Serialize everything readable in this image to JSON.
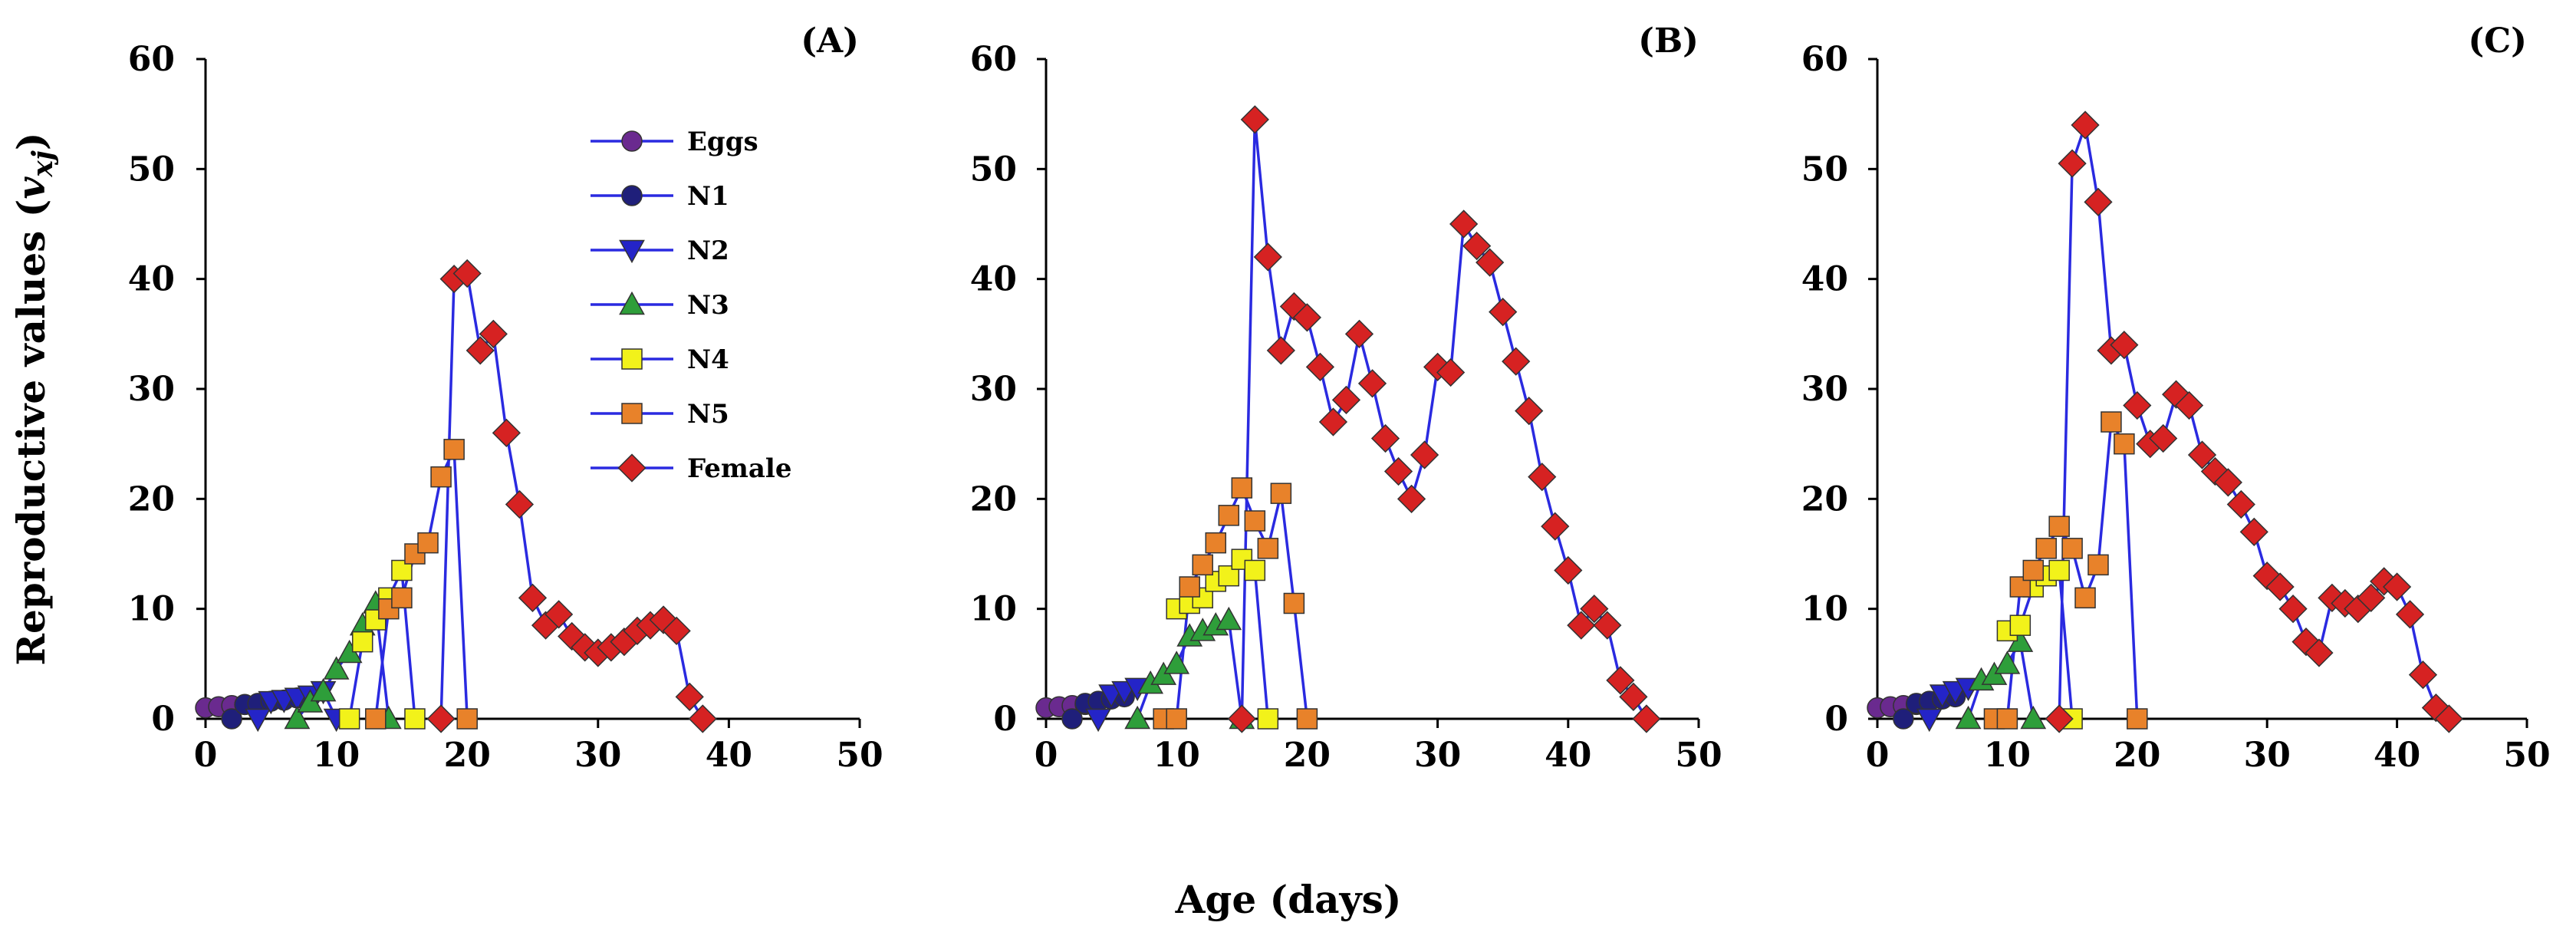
{
  "chart_data": {
    "type": "line",
    "xlabel": "Age (days)",
    "ylabel_main": "Reproductive values (",
    "ylabel_var": "v",
    "ylabel_sub": "xj",
    "ylabel_close": ")",
    "xlim": [
      0,
      50
    ],
    "ylim": [
      0,
      60
    ],
    "x_ticks": [
      "0",
      "10",
      "20",
      "30",
      "40",
      "50"
    ],
    "y_ticks": [
      "0",
      "10",
      "20",
      "30",
      "40",
      "50",
      "60"
    ],
    "legend": {
      "position": "inside-top-left of panel A",
      "entries": [
        "Eggs",
        "N1",
        "N2",
        "N3",
        "N4",
        "N5",
        "Female"
      ]
    },
    "stage_styles": {
      "Eggs": {
        "marker": "circle",
        "color": "#6a2a8f"
      },
      "N1": {
        "marker": "circle",
        "color": "#1f1f7a"
      },
      "N2": {
        "marker": "triangle-down",
        "color": "#2424c8"
      },
      "N3": {
        "marker": "triangle-up",
        "color": "#2e9e3a"
      },
      "N4": {
        "marker": "square",
        "color": "#f2f21a"
      },
      "N5": {
        "marker": "square",
        "color": "#e8822a"
      },
      "Female": {
        "marker": "diamond",
        "color": "#d62222"
      }
    },
    "line_color": "#2a2ae0",
    "panels": [
      {
        "label": "(A)",
        "series": [
          {
            "name": "Eggs",
            "x": [
              0,
              1,
              2,
              3
            ],
            "y": [
              1.0,
              1.1,
              1.2,
              1.3
            ]
          },
          {
            "name": "N1",
            "x": [
              2,
              3,
              4,
              5,
              6,
              7,
              8
            ],
            "y": [
              0,
              1.3,
              1.4,
              1.6,
              1.7,
              1.9,
              2.0
            ]
          },
          {
            "name": "N2",
            "x": [
              4,
              5,
              6,
              7,
              8,
              9,
              10
            ],
            "y": [
              0,
              1.6,
              1.7,
              1.9,
              2.1,
              2.5,
              0
            ]
          },
          {
            "name": "N3",
            "x": [
              7,
              8,
              9,
              10,
              11,
              12,
              13,
              14
            ],
            "y": [
              0,
              1.5,
              2.5,
              4.5,
              6,
              8.5,
              10.5,
              0
            ]
          },
          {
            "name": "N4",
            "x": [
              11,
              12,
              13,
              14,
              15,
              16
            ],
            "y": [
              0,
              7,
              9,
              11,
              13.5,
              0
            ]
          },
          {
            "name": "N5",
            "x": [
              13,
              14,
              15,
              16,
              17,
              18,
              19,
              20
            ],
            "y": [
              0,
              10,
              11,
              15,
              16,
              22,
              24.5,
              0
            ]
          },
          {
            "name": "Female",
            "x": [
              18,
              19,
              20,
              21,
              22,
              23,
              24,
              25,
              26,
              27,
              28,
              29,
              30,
              31,
              32,
              33,
              34,
              35,
              36,
              37,
              38
            ],
            "y": [
              0,
              40,
              40.5,
              33.5,
              35,
              26,
              19.5,
              11,
              8.5,
              9.5,
              7.5,
              6.5,
              6,
              6.5,
              7,
              8,
              8.5,
              9,
              8,
              2,
              0
            ]
          }
        ]
      },
      {
        "label": "(B)",
        "series": [
          {
            "name": "Eggs",
            "x": [
              0,
              1,
              2,
              3
            ],
            "y": [
              1.0,
              1.1,
              1.2,
              1.3
            ]
          },
          {
            "name": "N1",
            "x": [
              2,
              3,
              4,
              5,
              6
            ],
            "y": [
              0,
              1.4,
              1.6,
              1.8,
              2.0
            ]
          },
          {
            "name": "N2",
            "x": [
              4,
              5,
              6,
              7
            ],
            "y": [
              0,
              2.2,
              2.5,
              2.8
            ]
          },
          {
            "name": "N3",
            "x": [
              7,
              8,
              9,
              10,
              11,
              12,
              13,
              14,
              15
            ],
            "y": [
              0,
              3.2,
              4,
              5,
              7.5,
              8,
              8.5,
              9,
              0
            ]
          },
          {
            "name": "N4",
            "x": [
              10,
              11,
              12,
              13,
              14,
              15,
              16,
              17
            ],
            "y": [
              10,
              10.5,
              11,
              12.5,
              13,
              14.5,
              13.5,
              0
            ]
          },
          {
            "name": "N5",
            "x": [
              9,
              10,
              11,
              12,
              13,
              14,
              15,
              16,
              17,
              18,
              19,
              20
            ],
            "y": [
              0,
              0,
              12,
              14,
              16,
              18.5,
              21,
              18,
              15.5,
              20.5,
              10.5,
              0
            ]
          },
          {
            "name": "Female",
            "x": [
              15,
              16,
              17,
              18,
              19,
              20,
              21,
              22,
              23,
              24,
              25,
              26,
              27,
              28,
              29,
              30,
              31,
              32,
              33,
              34,
              35,
              36,
              37,
              38,
              39,
              40,
              41,
              42,
              43,
              44,
              45,
              46
            ],
            "y": [
              0,
              54.5,
              42,
              33.5,
              37.5,
              36.5,
              32,
              27,
              29,
              35,
              30.5,
              25.5,
              22.5,
              20,
              24,
              32,
              31.5,
              45,
              43,
              41.5,
              37,
              32.5,
              28,
              22,
              17.5,
              13.5,
              8.5,
              10,
              8.5,
              3.5,
              2,
              0
            ]
          }
        ]
      },
      {
        "label": "(C)",
        "series": [
          {
            "name": "Eggs",
            "x": [
              0,
              1,
              2,
              3
            ],
            "y": [
              1.0,
              1.1,
              1.2,
              1.3
            ]
          },
          {
            "name": "N1",
            "x": [
              2,
              3,
              4,
              5,
              6
            ],
            "y": [
              0,
              1.4,
              1.6,
              1.8,
              2.0
            ]
          },
          {
            "name": "N2",
            "x": [
              4,
              5,
              6,
              7
            ],
            "y": [
              0,
              2.2,
              2.5,
              2.8
            ]
          },
          {
            "name": "N3",
            "x": [
              7,
              8,
              9,
              10,
              11,
              12
            ],
            "y": [
              0,
              3.5,
              4,
              5,
              7,
              0
            ]
          },
          {
            "name": "N4",
            "x": [
              10,
              11,
              12,
              13,
              14,
              15
            ],
            "y": [
              8,
              8.5,
              12,
              13,
              13.5,
              0
            ]
          },
          {
            "name": "N5",
            "x": [
              9,
              10,
              11,
              12,
              13,
              14,
              15,
              16,
              17,
              18,
              19,
              20
            ],
            "y": [
              0,
              0,
              12,
              13.5,
              15.5,
              17.5,
              15.5,
              11,
              14,
              27,
              25,
              0
            ]
          },
          {
            "name": "Female",
            "x": [
              14,
              15,
              16,
              17,
              18,
              19,
              20,
              21,
              22,
              23,
              24,
              25,
              26,
              27,
              28,
              29,
              30,
              31,
              32,
              33,
              34,
              35,
              36,
              37,
              38,
              39,
              40,
              41,
              42,
              43,
              44
            ],
            "y": [
              0,
              50.5,
              54,
              47,
              33.5,
              34,
              28.5,
              25,
              25.5,
              29.5,
              28.5,
              24,
              22.5,
              21.5,
              19.5,
              17,
              13,
              12,
              10,
              7,
              6,
              11,
              10.5,
              10,
              11,
              12.5,
              12,
              9.5,
              4,
              1,
              0
            ]
          }
        ]
      }
    ]
  }
}
